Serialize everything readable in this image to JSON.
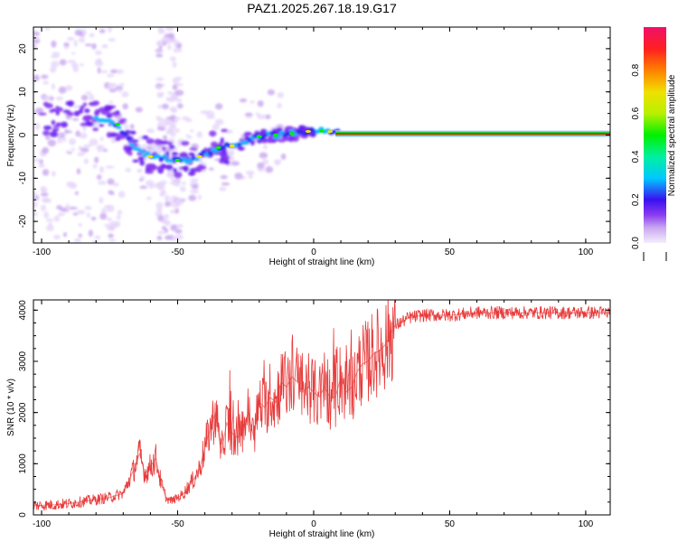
{
  "title": "PAZ1.2025.267.18.19.G17",
  "chart_data": [
    {
      "type": "heatmap",
      "xlabel": "Height of straight line (km)",
      "ylabel": "Frequency (Hz)",
      "xlim": [
        -103,
        109
      ],
      "ylim": [
        -25,
        25
      ],
      "x_ticks": [
        -100,
        -50,
        0,
        50,
        100
      ],
      "x_tick_labels": [
        "-100",
        "-50",
        "0",
        "50",
        "100"
      ],
      "y_ticks": [
        -20,
        -10,
        0,
        10,
        20
      ],
      "y_tick_labels": [
        "-20",
        "-10",
        "0",
        "10",
        "20"
      ],
      "colorbar": {
        "label": "Normalized spectral amplitude",
        "range": [
          0,
          1
        ],
        "ticks": [
          0.0,
          0.2,
          0.4,
          0.6,
          0.8
        ],
        "tick_labels": [
          "0.0",
          "0.2",
          "0.4",
          "0.6",
          "0.8"
        ]
      },
      "ridge": {
        "x": [
          -80,
          -72,
          -66,
          -60,
          -54,
          -48,
          -42,
          -36,
          -30,
          -24,
          -18,
          -12,
          -6,
          0,
          6,
          10,
          109
        ],
        "freq": [
          3.5,
          2.5,
          -2.5,
          -5,
          -5.5,
          -6,
          -5,
          -3,
          -2.5,
          -1,
          0,
          0,
          0.5,
          1,
          0.8,
          0.3,
          0.3
        ]
      },
      "grid": false
    },
    {
      "type": "line",
      "xlabel": "Height of straight line (km)",
      "ylabel": "SNR (10 * v/v)",
      "xlim": [
        -103,
        109
      ],
      "ylim": [
        0,
        4200
      ],
      "x_ticks": [
        -100,
        -50,
        0,
        50,
        100
      ],
      "x_tick_labels": [
        "-100",
        "-50",
        "0",
        "50",
        "100"
      ],
      "y_ticks": [
        0,
        1000,
        2000,
        3000,
        4000
      ],
      "y_tick_labels": [
        "0",
        "1000",
        "2000",
        "3000",
        "4000"
      ],
      "series": [
        {
          "color": "#e83a3a",
          "x": [
            -103,
            -95,
            -90,
            -85,
            -80,
            -75,
            -70,
            -66,
            -64,
            -62,
            -60,
            -58,
            -56,
            -54,
            -52,
            -50,
            -48,
            -46,
            -44,
            -42,
            -40,
            -38,
            -36,
            -34,
            -32,
            -30,
            -28,
            -26,
            -24,
            -22,
            -20,
            -18,
            -16,
            -14,
            -12,
            -10,
            -8,
            -6,
            -4,
            -2,
            0,
            2,
            4,
            6,
            8,
            10,
            12,
            14,
            16,
            18,
            20,
            22,
            24,
            26,
            28,
            30,
            35,
            40,
            50,
            60,
            70,
            80,
            90,
            100,
            109
          ],
          "values": [
            180,
            200,
            220,
            260,
            300,
            340,
            420,
            900,
            1200,
            800,
            950,
            1100,
            600,
            300,
            280,
            340,
            400,
            560,
            700,
            900,
            1300,
            1700,
            2000,
            1200,
            1800,
            1600,
            1500,
            1700,
            2000,
            1500,
            2200,
            2100,
            2300,
            2200,
            2600,
            2500,
            2700,
            2600,
            2400,
            2500,
            2400,
            2300,
            2500,
            2300,
            2300,
            2700,
            2400,
            2500,
            2800,
            2950,
            3000,
            3150,
            3200,
            3300,
            3500,
            3700,
            3850,
            3900,
            3900,
            3950,
            3950,
            3950,
            3950,
            3950,
            3950
          ]
        }
      ],
      "grid": false
    }
  ]
}
